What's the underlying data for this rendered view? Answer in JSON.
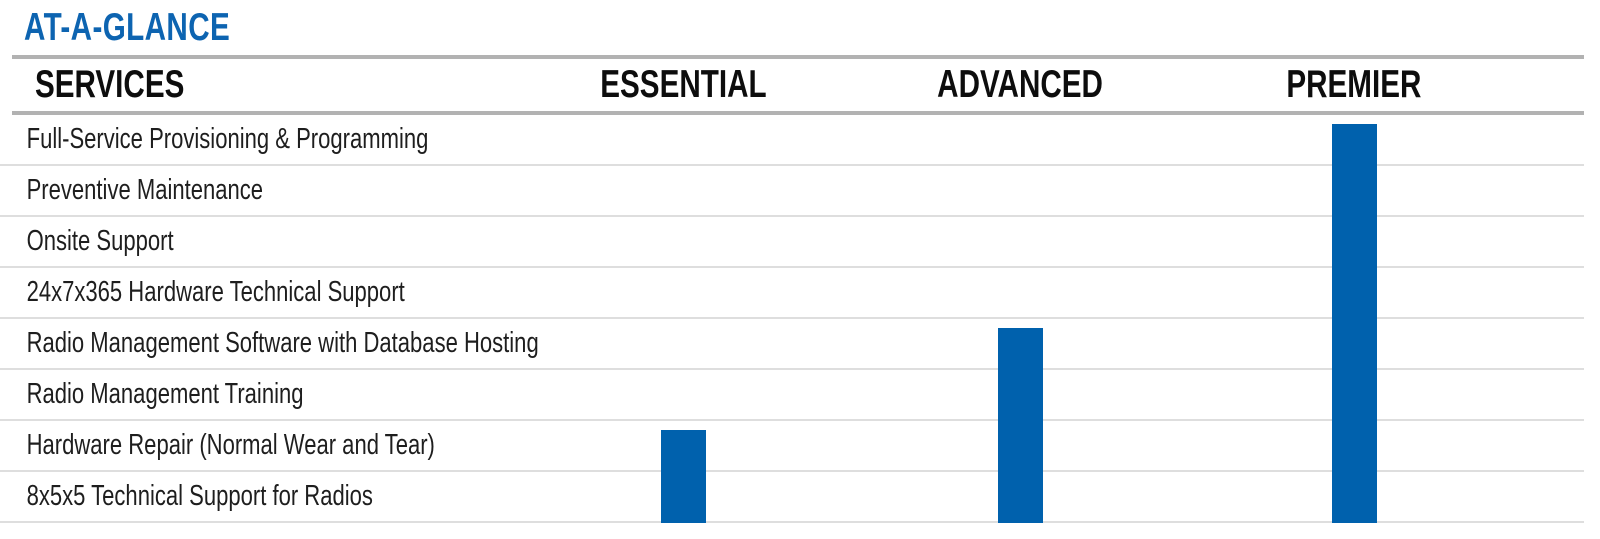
{
  "title": "AT-A-GLANCE",
  "table": {
    "services_header": "SERVICES",
    "tiers": [
      {
        "label": "ESSENTIAL",
        "bar_starts_at_row": 7,
        "first_included_service": "Hardware Repair (Normal Wear and Tear)"
      },
      {
        "label": "ADVANCED",
        "bar_starts_at_row": 5,
        "first_included_service": "Radio Management Software with Database Hosting"
      },
      {
        "label": "PREMIER",
        "bar_starts_at_row": 1,
        "first_included_service": "Full-Service Provisioning & Programming"
      }
    ],
    "services": [
      "Full-Service Provisioning & Programming",
      "Preventive Maintenance",
      "Onsite Support",
      "24x7x365 Hardware Technical Support",
      "Radio Management Software with Database Hosting",
      "Radio Management Training",
      "Hardware Repair (Normal Wear and Tear)",
      "8x5x5 Technical Support for Radios"
    ]
  },
  "colors": {
    "accent_blue": "#0d64b1",
    "bar_blue": "#0061ad",
    "rule_gray": "#b2b2b2",
    "line_gray": "#dedede"
  }
}
